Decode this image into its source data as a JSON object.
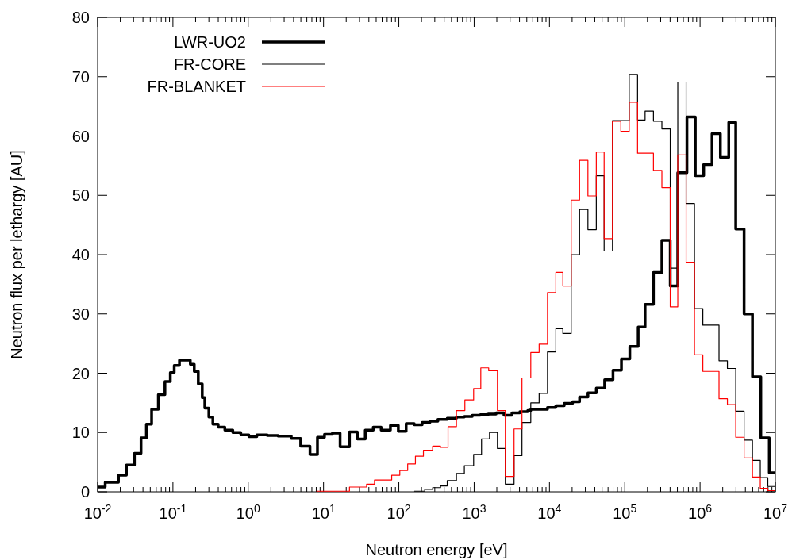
{
  "chart_data": {
    "type": "step",
    "xlabel": "Neutron energy [eV]",
    "ylabel": "Neutron flux per lethargy [AU]",
    "log": "x",
    "grid": false,
    "legend": "top left",
    "xlim": [
      0.01,
      10000000
    ],
    "ylim": [
      0,
      80
    ],
    "yticks": [
      0,
      10,
      20,
      30,
      40,
      50,
      60,
      70,
      80
    ],
    "xticks": [
      {
        "value": 0.01,
        "label": "10$^{-2}$"
      },
      {
        "value": 0.1,
        "label": "10$^{-1}$"
      },
      {
        "value": 1,
        "label": "10$^{0}$"
      },
      {
        "value": 10,
        "label": "10$^{1}$"
      },
      {
        "value": 100,
        "label": "10$^{2}$"
      },
      {
        "value": 1000,
        "label": "10$^{3}$"
      },
      {
        "value": 10000,
        "label": "10$^{4}$"
      },
      {
        "value": 100000,
        "label": "10$^{5}$"
      },
      {
        "value": 1000000,
        "label": "10$^{6}$"
      },
      {
        "value": 10000000,
        "label": "10$^{7}$"
      }
    ],
    "series": [
      {
        "name": "LWR-UO2",
        "color": "#000000",
        "x": [
          0.01,
          0.0126,
          0.0189,
          0.0241,
          0.0308,
          0.0377,
          0.0444,
          0.0521,
          0.064,
          0.0783,
          0.0923,
          0.104,
          0.122,
          0.17,
          0.192,
          0.217,
          0.245,
          0.265,
          0.3,
          0.339,
          0.399,
          0.489,
          0.624,
          0.796,
          1.02,
          1.3,
          1.79,
          2.49,
          3.73,
          4.97,
          6.61,
          8.3,
          10.3,
          13.1,
          16.6,
          22.1,
          28.1,
          35.8,
          45.7,
          58.2,
          77.3,
          98.4,
          125,
          160,
          204,
          259,
          330,
          439,
          582,
          741,
          944,
          1205,
          1535,
          1954,
          2489,
          3177,
          4046,
          5152,
          5649,
          9419,
          12160,
          15700,
          20280,
          25120,
          32430,
          41880,
          54080,
          69820,
          90360,
          116700,
          150700,
          186200,
          240400,
          311200,
          401800,
          505800,
          669900,
          865000,
          1117000,
          1442000,
          1862000,
          2404000,
          2979000,
          3846000,
          4966000,
          6412000,
          8299000,
          10000000
        ],
        "values": [
          0.8,
          1.6,
          2.8,
          4.5,
          6.5,
          9.1,
          11.4,
          13.9,
          16.4,
          18.6,
          20.1,
          21.3,
          22.2,
          21.5,
          20.3,
          18.2,
          15.9,
          14.1,
          12.6,
          11.4,
          10.9,
          10.4,
          10.0,
          9.6,
          9.3,
          9.6,
          9.5,
          9.4,
          9.0,
          7.7,
          6.3,
          9.2,
          9.7,
          9.9,
          7.6,
          10.1,
          8.9,
          10.4,
          10.9,
          10.4,
          11.2,
          10.2,
          11.5,
          11.3,
          11.7,
          11.9,
          12.2,
          12.4,
          12.6,
          12.7,
          12.9,
          13.0,
          13.1,
          13.3,
          12.9,
          13.3,
          13.5,
          13.7,
          13.9,
          14.2,
          14.5,
          14.9,
          15.2,
          16.0,
          16.7,
          17.5,
          18.9,
          20.5,
          22.4,
          24.5,
          27.8,
          31.6,
          37.0,
          42.4,
          34.7,
          53.8,
          63.2,
          53.3,
          55.2,
          60.4,
          56.4,
          62.3,
          44.3,
          30.0,
          19.4,
          9.1,
          3.2,
          3.2
        ]
      },
      {
        "name": "FR-CORE",
        "color": "#000000",
        "x": [
          160,
          221,
          281,
          358,
          439,
          582,
          741,
          984,
          1253,
          1600,
          2037,
          2594,
          3388,
          4315,
          5649,
          7295,
          9419,
          12160,
          15070,
          19450,
          25120,
          32430,
          41880,
          53210,
          68710,
          114600,
          147900,
          186200,
          240400,
          311200,
          401800,
          505800,
          653100,
          843300,
          1089000,
          1786000,
          2307000,
          2979000,
          3846000,
          4966000,
          6310000,
          7943000,
          10000000
        ],
        "values": [
          0.1,
          0.4,
          0.7,
          1.0,
          1.9,
          3.1,
          4.4,
          6.3,
          8.9,
          10.0,
          7.3,
          1.3,
          6.1,
          11.7,
          15.0,
          16.6,
          23.6,
          27.5,
          26.7,
          40.0,
          47.6,
          44.2,
          53.3,
          40.6,
          62.6,
          70.4,
          62.7,
          64.2,
          62.5,
          61.2,
          37.7,
          69.1,
          48.6,
          30.9,
          28.1,
          22.1,
          20.8,
          13.6,
          8.7,
          5.3,
          2.4,
          0.9,
          0.9
        ]
      },
      {
        "name": "FR-BLANKET",
        "color": "#ff0000",
        "x": [
          8.04,
          22.1,
          37.3,
          47.5,
          80.4,
          103,
          131,
          166,
          212,
          281,
          358,
          450,
          582,
          753,
          984,
          1225,
          1560,
          2037,
          2594,
          3388,
          4315,
          5649,
          7295,
          9419,
          12160,
          15070,
          19450,
          25120,
          32430,
          41880,
          53210,
          68710,
          88720,
          114600,
          147900,
          240400,
          311200,
          401800,
          505800,
          653100,
          843300,
          1089000,
          1786000,
          2307000,
          2979000,
          3846000,
          4966000,
          6310000,
          7943000,
          10000000
        ],
        "values": [
          0.1,
          0.8,
          1.3,
          2.0,
          2.8,
          3.6,
          4.7,
          6.0,
          7.0,
          7.7,
          7.5,
          11.0,
          13.7,
          15.5,
          17.4,
          20.9,
          20.4,
          13.7,
          2.6,
          10.6,
          19.2,
          23.5,
          24.9,
          33.6,
          37.0,
          34.7,
          49.2,
          55.9,
          49.9,
          57.3,
          42.7,
          62.5,
          60.8,
          65.7,
          57.1,
          54.2,
          51.3,
          31.2,
          56.8,
          38.7,
          23.1,
          20.3,
          15.7,
          14.7,
          9.2,
          5.7,
          2.5,
          0.6,
          0.2,
          0.2
        ]
      }
    ]
  }
}
